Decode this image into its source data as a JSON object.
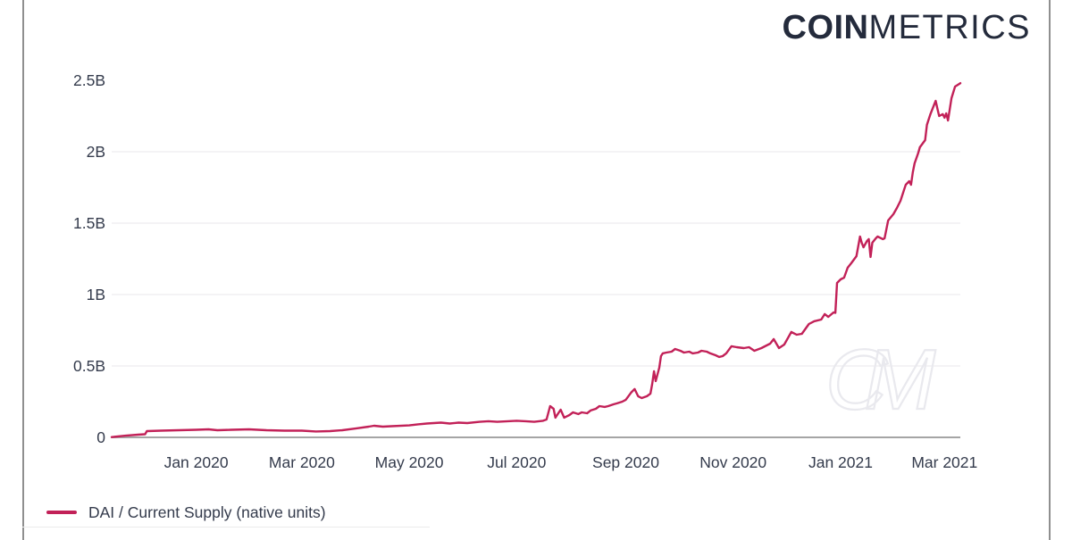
{
  "logo": {
    "part_bold": "COIN",
    "part_light": "METRICS"
  },
  "watermark": {
    "text": "CM"
  },
  "legend": {
    "label": "DAI / Current Supply (native units)"
  },
  "colors": {
    "line": "#c22158",
    "grid": "#f1eff2",
    "axis": "#a5a5a5",
    "text": "#343b4c",
    "logo": "#242b3c",
    "watermark": "#e9e9ee",
    "border": "#8f8f8f"
  },
  "chart_data": {
    "type": "line",
    "title": "",
    "xlabel": "",
    "ylabel": "",
    "ylim": [
      0,
      2.5
    ],
    "x_domain": [
      "2019-11-14",
      "2021-03-10"
    ],
    "grid": "horizontal-only, light, at 0.5B steps (no line at 2.5B), gray baseline at 0",
    "legend_position": "bottom-left",
    "y_ticks": [
      {
        "label": "2.5B",
        "value": 2.5
      },
      {
        "label": "2B",
        "value": 2.0
      },
      {
        "label": "1.5B",
        "value": 1.5
      },
      {
        "label": "1B",
        "value": 1.0
      },
      {
        "label": "0.5B",
        "value": 0.5
      },
      {
        "label": "0",
        "value": 0
      }
    ],
    "x_ticks": [
      {
        "label": "Jan 2020",
        "date": "2020-01-01"
      },
      {
        "label": "Mar 2020",
        "date": "2020-03-01"
      },
      {
        "label": "May 2020",
        "date": "2020-05-01"
      },
      {
        "label": "Jul 2020",
        "date": "2020-07-01"
      },
      {
        "label": "Sep 2020",
        "date": "2020-09-01"
      },
      {
        "label": "Nov 2020",
        "date": "2020-11-01"
      },
      {
        "label": "Jan 2021",
        "date": "2021-01-01"
      },
      {
        "label": "Mar 2021",
        "date": "2021-03-01"
      }
    ],
    "series": [
      {
        "name": "DAI / Current Supply (native units)",
        "color": "#c22158",
        "units": "billions of DAI",
        "points": [
          [
            "2019-11-14",
            0.002
          ],
          [
            "2019-11-22",
            0.012
          ],
          [
            "2019-11-29",
            0.019
          ],
          [
            "2019-12-03",
            0.022
          ],
          [
            "2019-12-04",
            0.044
          ],
          [
            "2019-12-12",
            0.047
          ],
          [
            "2019-12-22",
            0.05
          ],
          [
            "2020-01-01",
            0.053
          ],
          [
            "2020-01-08",
            0.056
          ],
          [
            "2020-01-13",
            0.05
          ],
          [
            "2020-01-21",
            0.053
          ],
          [
            "2020-01-31",
            0.056
          ],
          [
            "2020-02-10",
            0.05
          ],
          [
            "2020-02-20",
            0.047
          ],
          [
            "2020-03-01",
            0.047
          ],
          [
            "2020-03-09",
            0.041
          ],
          [
            "2020-03-17",
            0.044
          ],
          [
            "2020-03-24",
            0.05
          ],
          [
            "2020-04-01",
            0.063
          ],
          [
            "2020-04-08",
            0.075
          ],
          [
            "2020-04-11",
            0.081
          ],
          [
            "2020-04-16",
            0.075
          ],
          [
            "2020-04-21",
            0.078
          ],
          [
            "2020-05-01",
            0.084
          ],
          [
            "2020-05-06",
            0.091
          ],
          [
            "2020-05-11",
            0.097
          ],
          [
            "2020-05-19",
            0.103
          ],
          [
            "2020-05-24",
            0.097
          ],
          [
            "2020-05-29",
            0.103
          ],
          [
            "2020-06-03",
            0.1
          ],
          [
            "2020-06-10",
            0.109
          ],
          [
            "2020-06-15",
            0.113
          ],
          [
            "2020-06-20",
            0.109
          ],
          [
            "2020-07-01",
            0.116
          ],
          [
            "2020-07-06",
            0.113
          ],
          [
            "2020-07-11",
            0.109
          ],
          [
            "2020-07-16",
            0.116
          ],
          [
            "2020-07-18",
            0.125
          ],
          [
            "2020-07-20",
            0.219
          ],
          [
            "2020-07-22",
            0.2
          ],
          [
            "2020-07-23",
            0.138
          ],
          [
            "2020-07-26",
            0.194
          ],
          [
            "2020-07-28",
            0.138
          ],
          [
            "2020-07-31",
            0.156
          ],
          [
            "2020-08-02",
            0.175
          ],
          [
            "2020-08-05",
            0.163
          ],
          [
            "2020-08-07",
            0.175
          ],
          [
            "2020-08-10",
            0.169
          ],
          [
            "2020-08-12",
            0.188
          ],
          [
            "2020-08-15",
            0.2
          ],
          [
            "2020-08-17",
            0.219
          ],
          [
            "2020-08-20",
            0.213
          ],
          [
            "2020-08-22",
            0.219
          ],
          [
            "2020-08-25",
            0.231
          ],
          [
            "2020-08-27",
            0.238
          ],
          [
            "2020-08-30",
            0.25
          ],
          [
            "2020-09-01",
            0.263
          ],
          [
            "2020-09-04",
            0.313
          ],
          [
            "2020-09-06",
            0.338
          ],
          [
            "2020-09-08",
            0.288
          ],
          [
            "2020-09-10",
            0.275
          ],
          [
            "2020-09-13",
            0.288
          ],
          [
            "2020-09-15",
            0.306
          ],
          [
            "2020-09-16",
            0.375
          ],
          [
            "2020-09-17",
            0.463
          ],
          [
            "2020-09-18",
            0.394
          ],
          [
            "2020-09-20",
            0.488
          ],
          [
            "2020-09-21",
            0.569
          ],
          [
            "2020-09-22",
            0.588
          ],
          [
            "2020-09-24",
            0.594
          ],
          [
            "2020-09-27",
            0.6
          ],
          [
            "2020-09-29",
            0.619
          ],
          [
            "2020-10-02",
            0.606
          ],
          [
            "2020-10-04",
            0.594
          ],
          [
            "2020-10-07",
            0.6
          ],
          [
            "2020-10-09",
            0.588
          ],
          [
            "2020-10-12",
            0.594
          ],
          [
            "2020-10-14",
            0.606
          ],
          [
            "2020-10-17",
            0.6
          ],
          [
            "2020-10-19",
            0.588
          ],
          [
            "2020-10-22",
            0.575
          ],
          [
            "2020-10-24",
            0.563
          ],
          [
            "2020-10-26",
            0.569
          ],
          [
            "2020-10-28",
            0.588
          ],
          [
            "2020-10-31",
            0.638
          ],
          [
            "2020-11-03",
            0.631
          ],
          [
            "2020-11-07",
            0.625
          ],
          [
            "2020-11-10",
            0.631
          ],
          [
            "2020-11-13",
            0.606
          ],
          [
            "2020-11-17",
            0.625
          ],
          [
            "2020-11-22",
            0.656
          ],
          [
            "2020-11-24",
            0.688
          ],
          [
            "2020-11-27",
            0.625
          ],
          [
            "2020-11-30",
            0.65
          ],
          [
            "2020-12-04",
            0.738
          ],
          [
            "2020-12-07",
            0.719
          ],
          [
            "2020-12-10",
            0.725
          ],
          [
            "2020-12-14",
            0.794
          ],
          [
            "2020-12-17",
            0.813
          ],
          [
            "2020-12-21",
            0.825
          ],
          [
            "2020-12-23",
            0.863
          ],
          [
            "2020-12-25",
            0.844
          ],
          [
            "2020-12-28",
            0.875
          ],
          [
            "2020-12-29",
            0.872
          ],
          [
            "2020-12-30",
            1.081
          ],
          [
            "2021-01-01",
            1.106
          ],
          [
            "2021-01-03",
            1.119
          ],
          [
            "2021-01-05",
            1.188
          ],
          [
            "2021-01-07",
            1.219
          ],
          [
            "2021-01-10",
            1.269
          ],
          [
            "2021-01-12",
            1.406
          ],
          [
            "2021-01-13",
            1.363
          ],
          [
            "2021-01-14",
            1.331
          ],
          [
            "2021-01-16",
            1.375
          ],
          [
            "2021-01-17",
            1.388
          ],
          [
            "2021-01-18",
            1.263
          ],
          [
            "2021-01-19",
            1.363
          ],
          [
            "2021-01-21",
            1.394
          ],
          [
            "2021-01-22",
            1.406
          ],
          [
            "2021-01-25",
            1.388
          ],
          [
            "2021-01-26",
            1.394
          ],
          [
            "2021-01-28",
            1.519
          ],
          [
            "2021-01-31",
            1.563
          ],
          [
            "2021-02-02",
            1.606
          ],
          [
            "2021-02-04",
            1.656
          ],
          [
            "2021-02-06",
            1.731
          ],
          [
            "2021-02-07",
            1.769
          ],
          [
            "2021-02-09",
            1.794
          ],
          [
            "2021-02-10",
            1.769
          ],
          [
            "2021-02-11",
            1.856
          ],
          [
            "2021-02-12",
            1.919
          ],
          [
            "2021-02-14",
            1.988
          ],
          [
            "2021-02-15",
            2.031
          ],
          [
            "2021-02-18",
            2.081
          ],
          [
            "2021-02-19",
            2.188
          ],
          [
            "2021-02-21",
            2.263
          ],
          [
            "2021-02-23",
            2.325
          ],
          [
            "2021-02-24",
            2.356
          ],
          [
            "2021-02-25",
            2.3
          ],
          [
            "2021-02-26",
            2.25
          ],
          [
            "2021-02-28",
            2.263
          ],
          [
            "2021-03-01",
            2.238
          ],
          [
            "2021-03-02",
            2.269
          ],
          [
            "2021-03-03",
            2.219
          ],
          [
            "2021-03-05",
            2.375
          ],
          [
            "2021-03-07",
            2.456
          ],
          [
            "2021-03-10",
            2.48
          ]
        ]
      }
    ]
  }
}
